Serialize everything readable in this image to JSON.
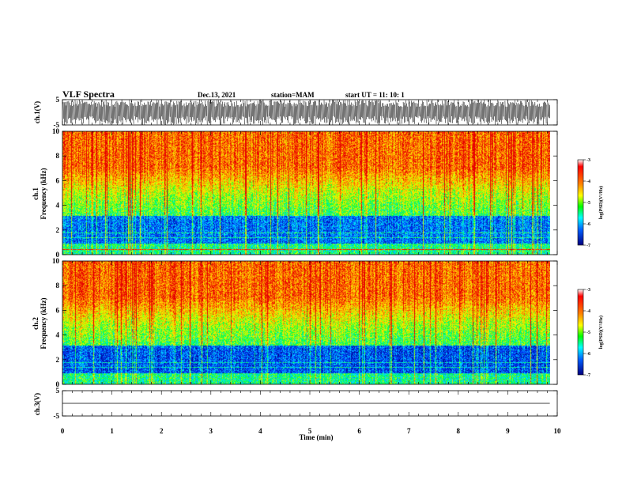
{
  "header": {
    "title": "VLF Spectra",
    "date": "Dec.13, 2021",
    "station": "station=MAM",
    "start": "start  UT =   11: 10: 1"
  },
  "chart_data": [
    {
      "type": "line",
      "name": "ch1-waveform",
      "ylabel": "ch.1(V)",
      "ylim": [
        -5,
        5
      ],
      "yticks": [
        "5",
        "-5"
      ],
      "xlim": [
        0,
        10
      ],
      "description_values": {
        "amplitude_range": [
          -5,
          5
        ]
      }
    },
    {
      "type": "heatmap",
      "name": "ch1-spectrogram",
      "ylabel_line1": "ch.1",
      "ylabel_line2": "Frequency (kHz)",
      "ylim": [
        0,
        10
      ],
      "yticks": [
        "0",
        "2",
        "4",
        "6",
        "8",
        "10"
      ],
      "xlim": [
        0,
        10
      ],
      "colorbar": {
        "label": "log(PSD)(V²/Hz)",
        "range": [
          -7,
          -3
        ],
        "ticks": [
          "-3",
          "-4",
          "-5",
          "-6",
          "-7"
        ]
      }
    },
    {
      "type": "heatmap",
      "name": "ch2-spectrogram",
      "ylabel_line1": "ch.2",
      "ylabel_line2": "Frequency (kHz)",
      "ylim": [
        0,
        10
      ],
      "yticks": [
        "0",
        "2",
        "4",
        "6",
        "8",
        "10"
      ],
      "xlim": [
        0,
        10
      ],
      "colorbar": {
        "label": "log(PSD)(V²/Hz)",
        "range": [
          -7,
          -3
        ],
        "ticks": [
          "-3",
          "-4",
          "-5",
          "-6",
          "-7"
        ]
      }
    },
    {
      "type": "line",
      "name": "ch3-waveform",
      "ylabel": "ch.3(V)",
      "ylim": [
        -5,
        5
      ],
      "yticks": [
        "5",
        "-5"
      ],
      "xlim": [
        0,
        10
      ],
      "series": [
        {
          "values": [
            0,
            0
          ]
        }
      ]
    }
  ],
  "xaxis": {
    "label": "Time (min)",
    "ticks": [
      "0",
      "1",
      "2",
      "3",
      "4",
      "5",
      "6",
      "7",
      "8",
      "9",
      "10"
    ],
    "data_end_min": 9.85
  }
}
